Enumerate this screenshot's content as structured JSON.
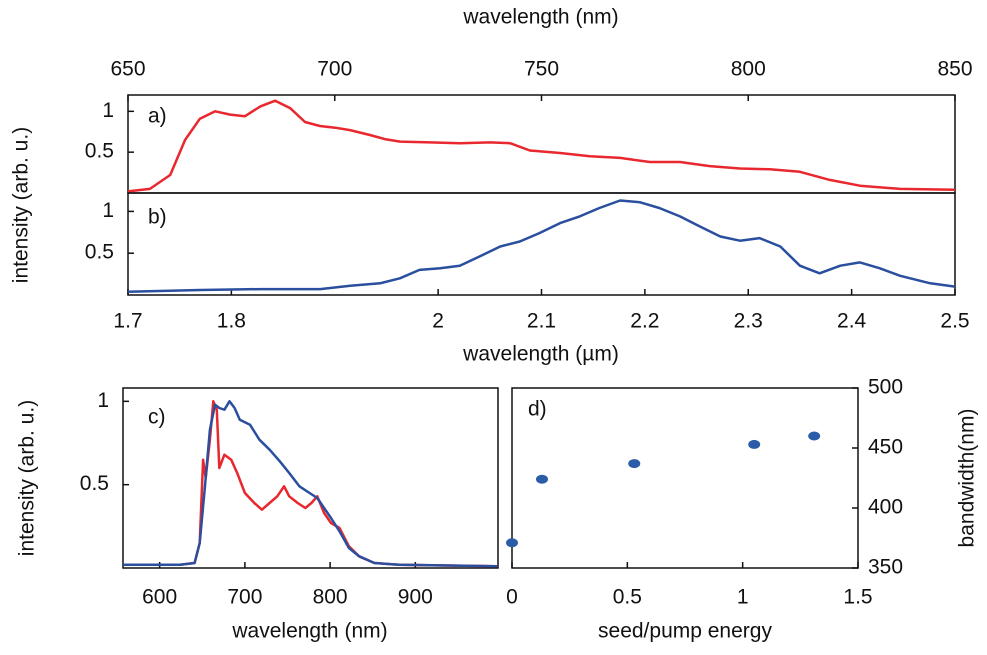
{
  "chart_data": [
    {
      "type": "line",
      "label": "a)",
      "xlabel": "wavelength (nm)",
      "ylabel": "intensity (arb. u.)",
      "xaxis": "top",
      "xlim": [
        650,
        850
      ],
      "xticks": [
        650,
        700,
        750,
        800,
        850
      ],
      "ylim": [
        0,
        1.2
      ],
      "yticks": [
        0.5,
        1
      ],
      "series": [
        {
          "color": "#e8282e",
          "x": [
            650,
            655.3,
            660.2,
            663.8,
            667.4,
            671.1,
            674.7,
            678.3,
            682,
            685.6,
            689.2,
            692.8,
            696.4,
            700.1,
            703.7,
            708.5,
            712.1,
            715.8,
            723,
            730.3,
            737.5,
            742.4,
            747.2,
            754.5,
            761.7,
            769,
            776.2,
            783.5,
            790.7,
            798,
            805.2,
            812.5,
            819.7,
            827,
            836.7,
            850
          ],
          "values": [
            0.02,
            0.05,
            0.22,
            0.65,
            0.91,
            1.0,
            0.96,
            0.94,
            1.06,
            1.13,
            1.04,
            0.87,
            0.82,
            0.8,
            0.77,
            0.71,
            0.66,
            0.63,
            0.62,
            0.61,
            0.62,
            0.61,
            0.52,
            0.49,
            0.45,
            0.43,
            0.38,
            0.38,
            0.33,
            0.3,
            0.29,
            0.26,
            0.16,
            0.09,
            0.05,
            0.04
          ]
        }
      ]
    },
    {
      "type": "line",
      "label": "b)",
      "xlabel": "wavelength (µm)",
      "xaxis": "bottom",
      "xlim": [
        1.7,
        2.5
      ],
      "xticks": [
        1.7,
        1.8,
        2,
        2.1,
        2.2,
        2.3,
        2.4,
        2.5
      ],
      "ylim": [
        0,
        1.22
      ],
      "yticks": [
        0.5,
        1
      ],
      "series": [
        {
          "color": "#2a4f9e",
          "x": [
            1.7,
            1.77,
            1.828,
            1.886,
            1.915,
            1.944,
            1.963,
            1.982,
            2.002,
            2.021,
            2.04,
            2.06,
            2.079,
            2.098,
            2.118,
            2.137,
            2.156,
            2.176,
            2.195,
            2.214,
            2.234,
            2.253,
            2.273,
            2.292,
            2.311,
            2.331,
            2.35,
            2.369,
            2.389,
            2.408,
            2.427,
            2.447,
            2.476,
            2.5
          ],
          "values": [
            0.04,
            0.06,
            0.07,
            0.07,
            0.11,
            0.14,
            0.2,
            0.3,
            0.32,
            0.35,
            0.46,
            0.58,
            0.64,
            0.74,
            0.86,
            0.94,
            1.04,
            1.13,
            1.11,
            1.04,
            0.94,
            0.82,
            0.7,
            0.65,
            0.68,
            0.58,
            0.35,
            0.26,
            0.35,
            0.39,
            0.32,
            0.23,
            0.14,
            0.1
          ]
        }
      ]
    },
    {
      "type": "line",
      "label": "c)",
      "xlabel": "wavelength (nm)",
      "ylabel": "intensity (arb. u.)",
      "xaxis": "bottom",
      "xlim": [
        557,
        997
      ],
      "xticks": [
        600,
        700,
        800,
        900
      ],
      "ylim": [
        0,
        1.08
      ],
      "yticks": [
        0.5,
        1
      ],
      "series": [
        {
          "color": "#e8282e",
          "x": [
            557,
            624,
            641,
            647,
            651,
            654,
            659,
            663,
            667,
            670,
            676,
            684,
            691,
            700,
            711,
            720,
            729,
            738,
            746,
            752,
            762,
            771,
            778,
            785,
            793,
            801,
            811,
            822,
            834,
            852,
            881,
            996
          ],
          "values": [
            0.02,
            0.02,
            0.03,
            0.15,
            0.65,
            0.54,
            0.77,
            1.0,
            0.95,
            0.6,
            0.68,
            0.65,
            0.57,
            0.45,
            0.39,
            0.35,
            0.39,
            0.43,
            0.49,
            0.43,
            0.39,
            0.36,
            0.39,
            0.43,
            0.33,
            0.27,
            0.24,
            0.13,
            0.07,
            0.03,
            0.02,
            0.01
          ]
        },
        {
          "color": "#2a4f9e",
          "x": [
            557,
            624,
            641,
            647,
            653,
            659,
            665,
            670,
            676,
            682,
            688,
            694,
            706,
            717,
            729,
            741,
            752,
            764,
            776,
            785,
            793,
            801,
            811,
            822,
            834,
            852,
            881,
            996
          ],
          "values": [
            0.02,
            0.02,
            0.03,
            0.15,
            0.48,
            0.83,
            0.98,
            0.96,
            0.95,
            1.0,
            0.96,
            0.89,
            0.86,
            0.77,
            0.71,
            0.64,
            0.57,
            0.49,
            0.45,
            0.42,
            0.36,
            0.3,
            0.22,
            0.12,
            0.07,
            0.03,
            0.02,
            0.01
          ]
        }
      ]
    },
    {
      "type": "scatter",
      "label": "d)",
      "xlabel": "seed/pump energy",
      "ylabel": "bandwidth(nm)",
      "xaxis": "bottom",
      "yaxis": "right",
      "xlim": [
        0,
        1.5
      ],
      "xticks": [
        0,
        0.5,
        1,
        1.5
      ],
      "ylim": [
        350,
        500
      ],
      "yticks": [
        350,
        400,
        450,
        500
      ],
      "series": [
        {
          "color": "#2a5ca8",
          "x": [
            0,
            0.13,
            0.53,
            1.05,
            1.31
          ],
          "values": [
            371,
            424,
            437,
            453,
            460
          ]
        }
      ]
    }
  ]
}
